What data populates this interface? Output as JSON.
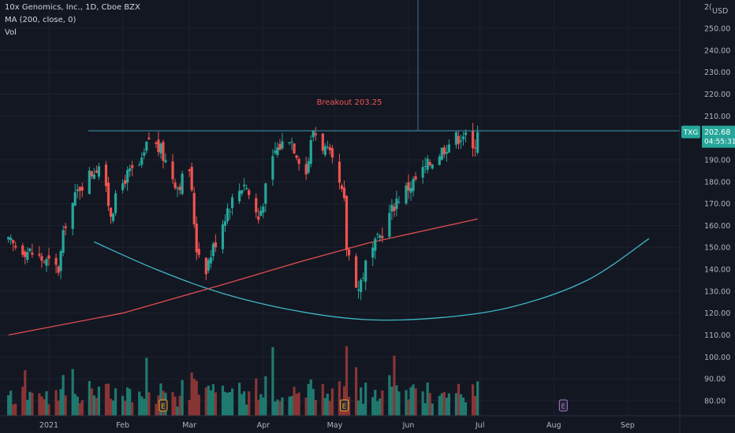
{
  "legend": {
    "symbol_line": "10x Genomics, Inc., 1D, Cboe BZX",
    "ma_line": "MA (200, close, 0)",
    "vol_line": "Vol"
  },
  "axis": {
    "currency": "USD",
    "top_cut_label": "2(",
    "y_ticks": [
      "250.00",
      "240.00",
      "230.00",
      "220.00",
      "210.00",
      "190.00",
      "180.00",
      "170.00",
      "160.00",
      "150.00",
      "140.00",
      "130.00",
      "120.00",
      "110.00",
      "100.00",
      "90.00",
      "80.00"
    ],
    "x_ticks": [
      "2021",
      "Feb",
      "Mar",
      "Apr",
      "May",
      "Jun",
      "Jul",
      "Aug",
      "Sep"
    ]
  },
  "price_tag": {
    "ticker": "TXG",
    "price": "202.68",
    "countdown": "04:55:31"
  },
  "annotation": {
    "text": "Breakout 203.25",
    "level": 203.25
  },
  "colors": {
    "background": "#131722",
    "up": "#26a69a",
    "down": "#ef5350",
    "up_volume": "#1f7a6f",
    "down_volume": "#8a3535",
    "ma": "#e04e4e",
    "curve": "#3fb7c5",
    "level_line": "#3b9fb5",
    "annotation": "#f05454",
    "price_tag": "#26a69a"
  },
  "chart_data": {
    "type": "candlestick",
    "symbol": "10x Genomics, Inc.",
    "interval": "1D",
    "exchange": "Cboe BZX",
    "x_range": [
      "2020-12-15",
      "2021-09-15"
    ],
    "ylim": [
      76,
      258
    ],
    "last_price": 202.68,
    "breakout_level": 203.25,
    "ohlc_anchors": [
      {
        "date": "2020-12-15",
        "close": 152
      },
      {
        "date": "2020-12-24",
        "close": 148
      },
      {
        "date": "2021-01-05",
        "close": 140
      },
      {
        "date": "2021-01-08",
        "close": 162
      },
      {
        "date": "2021-01-14",
        "close": 178
      },
      {
        "date": "2021-01-22",
        "close": 188
      },
      {
        "date": "2021-01-27",
        "close": 166
      },
      {
        "date": "2021-02-02",
        "close": 182
      },
      {
        "date": "2021-02-09",
        "close": 188
      },
      {
        "date": "2021-02-12",
        "close": 200
      },
      {
        "date": "2021-02-17",
        "close": 194
      },
      {
        "date": "2021-02-24",
        "close": 178
      },
      {
        "date": "2021-03-01",
        "close": 186
      },
      {
        "date": "2021-03-04",
        "close": 150
      },
      {
        "date": "2021-03-08",
        "close": 141
      },
      {
        "date": "2021-03-17",
        "close": 168
      },
      {
        "date": "2021-03-24",
        "close": 180
      },
      {
        "date": "2021-03-30",
        "close": 163
      },
      {
        "date": "2021-04-06",
        "close": 194
      },
      {
        "date": "2021-04-12",
        "close": 201
      },
      {
        "date": "2021-04-19",
        "close": 184
      },
      {
        "date": "2021-04-22",
        "close": 204
      },
      {
        "date": "2021-04-29",
        "close": 191
      },
      {
        "date": "2021-05-03",
        "close": 178
      },
      {
        "date": "2021-05-05",
        "close": 170
      },
      {
        "date": "2021-05-06",
        "close": 150
      },
      {
        "date": "2021-05-11",
        "close": 131
      },
      {
        "date": "2021-05-14",
        "close": 142
      },
      {
        "date": "2021-05-20",
        "close": 155
      },
      {
        "date": "2021-05-27",
        "close": 172
      },
      {
        "date": "2021-06-04",
        "close": 181
      },
      {
        "date": "2021-06-11",
        "close": 190
      },
      {
        "date": "2021-06-18",
        "close": 198
      },
      {
        "date": "2021-06-24",
        "close": 202
      },
      {
        "date": "2021-06-28",
        "close": 194
      },
      {
        "date": "2021-06-30",
        "close": 202.68
      }
    ],
    "ma200": [
      {
        "date": "2020-12-15",
        "value": 110
      },
      {
        "date": "2021-02-01",
        "value": 120
      },
      {
        "date": "2021-03-15",
        "value": 133
      },
      {
        "date": "2021-04-15",
        "value": 143
      },
      {
        "date": "2021-05-15",
        "value": 152
      },
      {
        "date": "2021-06-30",
        "value": 163
      }
    ],
    "rounding_curve": [
      {
        "date": "2021-01-20",
        "value": 152.5
      },
      {
        "date": "2021-02-15",
        "value": 140
      },
      {
        "date": "2021-03-15",
        "value": 129
      },
      {
        "date": "2021-04-15",
        "value": 121
      },
      {
        "date": "2021-05-15",
        "value": 117
      },
      {
        "date": "2021-06-15",
        "value": 118
      },
      {
        "date": "2021-07-15",
        "value": 123
      },
      {
        "date": "2021-08-15",
        "value": 135
      },
      {
        "date": "2021-09-10",
        "value": 154
      }
    ]
  }
}
